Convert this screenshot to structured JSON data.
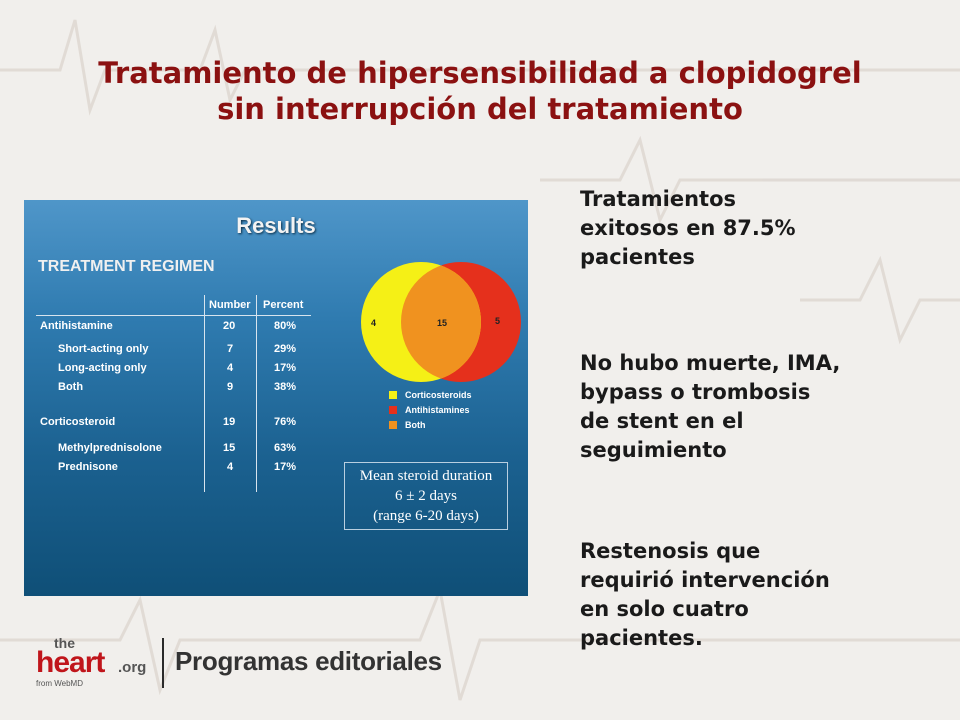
{
  "title": {
    "line1": "Tratamiento de hipersensibilidad a clopidogrel",
    "line2": "sin interrupción del tratamiento"
  },
  "panel": {
    "title": "Results",
    "subtitle": "TREATMENT REGIMEN",
    "headers": {
      "number": "Number",
      "percent": "Percent"
    },
    "rows": [
      {
        "label": "Antihistamine",
        "number": "20",
        "percent": "80%",
        "indent": false
      },
      {
        "label": "Short-acting only",
        "number": "7",
        "percent": "29%",
        "indent": true
      },
      {
        "label": "Long-acting only",
        "number": "4",
        "percent": "17%",
        "indent": true
      },
      {
        "label": "Both",
        "number": "9",
        "percent": "38%",
        "indent": true
      },
      {
        "label": "Corticosteroid",
        "number": "19",
        "percent": "76%",
        "indent": false
      },
      {
        "label": "Methylprednisolone",
        "number": "15",
        "percent": "63%",
        "indent": true
      },
      {
        "label": "Prednisone",
        "number": "4",
        "percent": "17%",
        "indent": true
      }
    ],
    "venn": {
      "left_only": "4",
      "both": "15",
      "right_only": "5",
      "colors": {
        "corticosteroids": "#f5f016",
        "antihistamines": "#e5301c",
        "both": "#f0921f"
      }
    },
    "legend": [
      {
        "label": "Corticosteroids",
        "color": "#f5f016"
      },
      {
        "label": "Antihistamines",
        "color": "#e5301c"
      },
      {
        "label": "Both",
        "color": "#f0921f"
      }
    ],
    "duration": {
      "line1": "Mean steroid duration",
      "line2": "6 ± 2 days",
      "line3": "(range 6-20 days)"
    }
  },
  "bullets": {
    "b1": [
      "Tratamientos",
      "exitosos en 87.5%",
      "pacientes"
    ],
    "b2": [
      "No hubo muerte, IMA,",
      "bypass o trombosis",
      "de stent en el",
      "seguimiento"
    ],
    "b3": [
      "Restenosis que",
      "requirió intervención",
      "en solo cuatro",
      "pacientes."
    ]
  },
  "footer": {
    "logo_the": "the",
    "logo_heart": "heart",
    "logo_org": ".org",
    "logo_from": "from WebMD",
    "text": "Programas editoriales"
  }
}
